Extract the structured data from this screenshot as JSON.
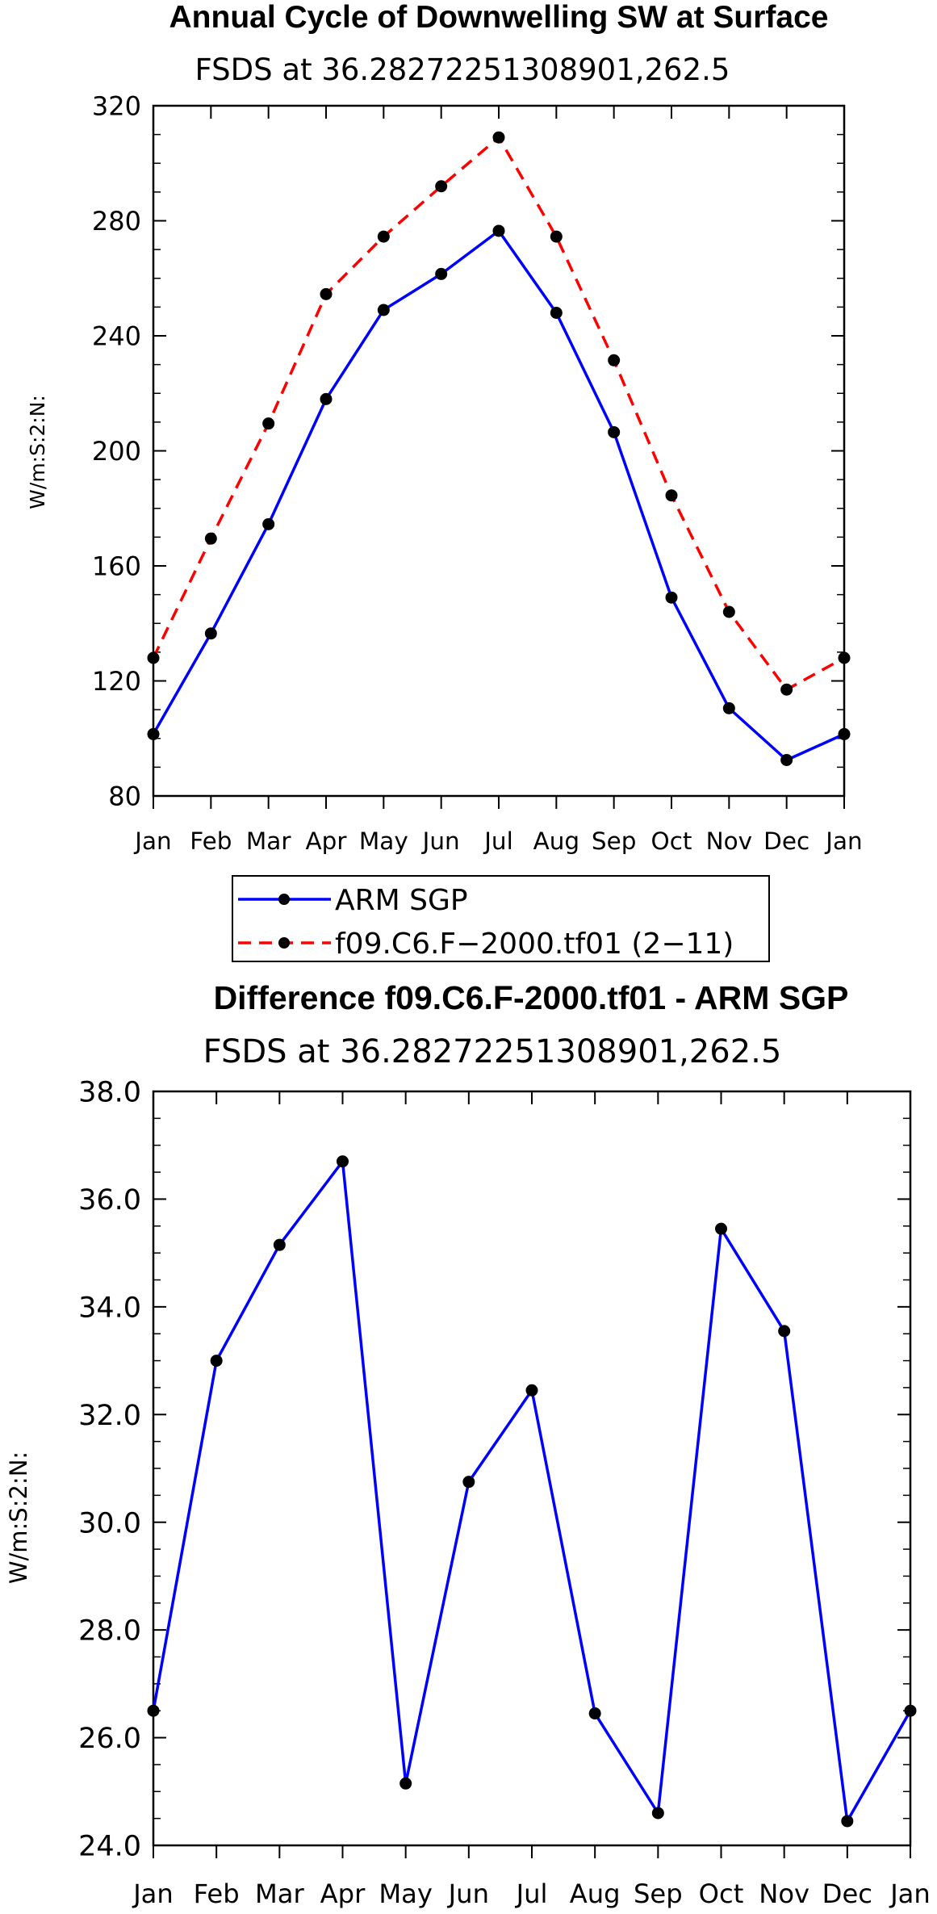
{
  "chart_data": [
    {
      "type": "line",
      "title": "Annual Cycle of Downwelling SW at Surface",
      "subtitle": "FSDS at 36.28272251308901,262.5",
      "ylabel": "W/m:S:2:N:",
      "categories": [
        "Jan",
        "Feb",
        "Mar",
        "Apr",
        "May",
        "Jun",
        "Jul",
        "Aug",
        "Sep",
        "Oct",
        "Nov",
        "Dec",
        "Jan"
      ],
      "ylim": [
        80,
        320
      ],
      "yticks": [
        80,
        120,
        160,
        200,
        240,
        280,
        320
      ],
      "ytick_labels": [
        "80",
        "120",
        "160",
        "200",
        "240",
        "280",
        "320"
      ],
      "series": [
        {
          "name": "ARM SGP",
          "color": "#0000ff",
          "dash": "solid",
          "marker": "#000000",
          "values": [
            101.5,
            136.5,
            174.5,
            218,
            249,
            261.5,
            276.5,
            248,
            206.5,
            149,
            110.5,
            92.5,
            101.5
          ]
        },
        {
          "name": "f09.C6.F−2000.tf01 (2−11)",
          "color": "#ff0000",
          "dash": "dashed",
          "marker": "#000000",
          "values": [
            128,
            169.5,
            209.5,
            254.5,
            274.5,
            292,
            309,
            274.5,
            231.5,
            184.5,
            144,
            117,
            128
          ]
        }
      ]
    },
    {
      "type": "line",
      "title": "Difference f09.C6.F-2000.tf01 - ARM SGP",
      "subtitle": "FSDS at 36.28272251308901,262.5",
      "ylabel": "W/m:S:2:N:",
      "categories": [
        "Jan",
        "Feb",
        "Mar",
        "Apr",
        "May",
        "Jun",
        "Jul",
        "Aug",
        "Sep",
        "Oct",
        "Nov",
        "Dec",
        "Jan"
      ],
      "ylim": [
        24,
        38
      ],
      "yticks": [
        24,
        26,
        28,
        30,
        32,
        34,
        36,
        38
      ],
      "ytick_labels": [
        "24.0",
        "26.0",
        "28.0",
        "30.0",
        "32.0",
        "34.0",
        "36.0",
        "38.0"
      ],
      "series": [
        {
          "name": "Difference",
          "color": "#0000ff",
          "dash": "solid",
          "marker": "#000000",
          "values": [
            26.5,
            33.0,
            35.15,
            36.7,
            25.15,
            30.75,
            32.45,
            26.45,
            24.6,
            35.45,
            33.55,
            24.45,
            26.5
          ]
        }
      ]
    }
  ]
}
